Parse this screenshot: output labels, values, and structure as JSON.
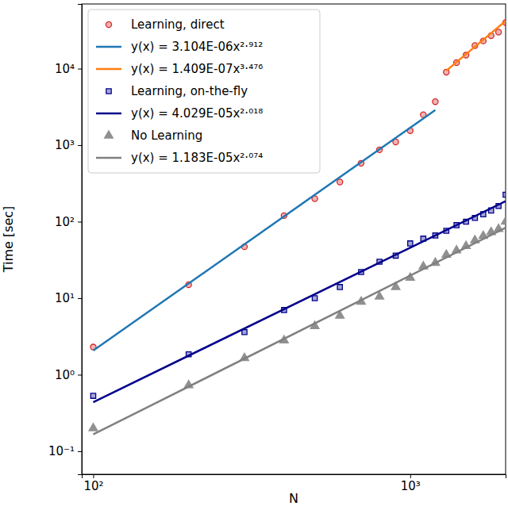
{
  "chart_data": {
    "type": "scatter",
    "x_label": "N",
    "y_label": "Time [sec]",
    "log": true,
    "legend": "upper left",
    "xlim": [
      92,
      2000
    ],
    "ylim": [
      0.05,
      70000
    ],
    "xticks": [
      {
        "value": 100,
        "label": "10²"
      },
      {
        "value": 1000,
        "label": "10³"
      }
    ],
    "yticks": [
      {
        "value": 0.1,
        "label": "10⁻¹"
      },
      {
        "value": 1,
        "label": "10⁰"
      },
      {
        "value": 10,
        "label": "10¹"
      },
      {
        "value": 100,
        "label": "10²"
      },
      {
        "value": 1000,
        "label": "10³"
      },
      {
        "value": 10000,
        "label": "10⁴"
      }
    ],
    "series": [
      {
        "name": "Learning, direct",
        "type": "scatter",
        "marker": "circle",
        "color": "#d62728",
        "x": [
          100,
          200,
          300,
          400,
          500,
          600,
          700,
          800,
          900,
          1000,
          1100,
          1200,
          1300,
          1400,
          1500,
          1600,
          1700,
          1800,
          1900,
          2000
        ],
        "values": [
          2.3,
          15,
          47,
          120,
          200,
          330,
          580,
          870,
          1100,
          1550,
          2500,
          3700,
          9000,
          12000,
          15000,
          20000,
          23000,
          27000,
          30000,
          40000
        ]
      },
      {
        "name": "y(x) = 3.104E-06x²·⁹¹²",
        "type": "line",
        "line_style": "solid",
        "color": "#1f77b4",
        "x": [
          100,
          1200
        ],
        "values": [
          2.07,
          2874
        ]
      },
      {
        "name": "y(x) = 1.409E-07x³·⁴⁷⁶",
        "type": "line",
        "line_style": "solid",
        "color": "#ff7f0e",
        "x": [
          1300,
          2000
        ],
        "values": [
          9400,
          42000
        ]
      },
      {
        "name": "Learning, on-the-fly",
        "type": "scatter",
        "marker": "square",
        "color": "#00008b",
        "x": [
          100,
          200,
          300,
          400,
          500,
          600,
          700,
          800,
          900,
          1000,
          1100,
          1200,
          1300,
          1400,
          1500,
          1600,
          1700,
          1800,
          1900,
          2000
        ],
        "values": [
          0.53,
          1.85,
          3.6,
          7,
          10,
          14,
          22,
          30,
          36,
          52,
          60,
          66,
          76,
          90,
          100,
          112,
          125,
          140,
          160,
          225
        ]
      },
      {
        "name": "y(x) = 4.029E-05x²·⁰¹⁸",
        "type": "line",
        "line_style": "solid",
        "color": "#00008b",
        "x": [
          100,
          2000
        ],
        "values": [
          0.438,
          185
        ]
      },
      {
        "name": "No Learning",
        "type": "scatter",
        "marker": "triangle",
        "color": "#909090",
        "x": [
          100,
          200,
          300,
          400,
          500,
          600,
          700,
          800,
          900,
          1000,
          1100,
          1200,
          1300,
          1400,
          1500,
          1600,
          1700,
          1800,
          1900,
          2000
        ],
        "values": [
          0.2,
          0.73,
          1.65,
          2.8,
          4.3,
          5.9,
          9,
          10.5,
          14,
          18.5,
          26,
          29,
          37,
          42,
          48,
          57,
          65,
          73,
          80,
          100
        ]
      },
      {
        "name": "y(x) = 1.183E-05x²·⁰⁷⁴",
        "type": "line",
        "line_style": "solid",
        "color": "#808080",
        "x": [
          100,
          2000
        ],
        "values": [
          0.166,
          83.2
        ]
      }
    ]
  }
}
